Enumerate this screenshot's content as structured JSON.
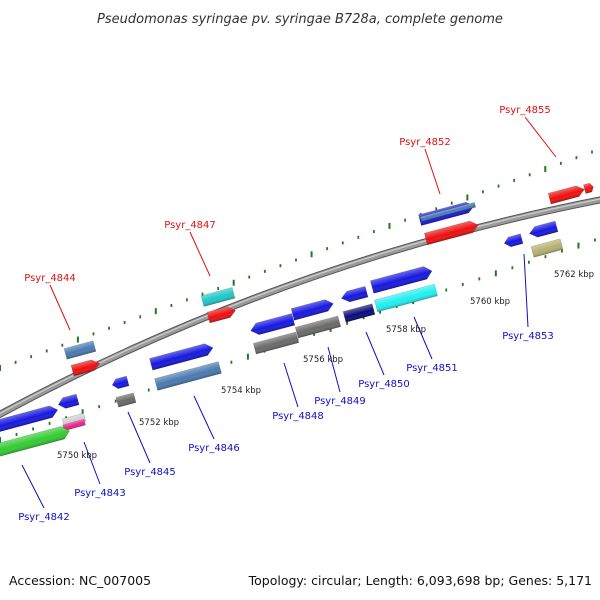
{
  "title": "Pseudomonas syringae pv. syringae B728a, complete genome",
  "footer": {
    "accession": "Accession: NC_007005",
    "summary": "Topology: circular; Length: 6,093,698 bp; Genes: 5,171"
  },
  "ticks": [
    "5750 kbp",
    "5752 kbp",
    "5754 kbp",
    "5756 kbp",
    "5758 kbp",
    "5760 kbp",
    "5762 kbp"
  ],
  "genes_top": [
    "Psyr_4844",
    "Psyr_4847",
    "Psyr_4852",
    "Psyr_4855"
  ],
  "genes_bottom": [
    "Psyr_4842",
    "Psyr_4843",
    "Psyr_4845",
    "Psyr_4846",
    "Psyr_4848",
    "Psyr_4849",
    "Psyr_4850",
    "Psyr_4851",
    "Psyr_4853"
  ],
  "colors": {
    "backbone": "#8a8a8a",
    "tick_green": "#1e7a1e",
    "label_red": "#e01010",
    "label_blue": "#1010c0",
    "cds_blue": "#1818e0",
    "cds_red": "#ee1010",
    "cds_teal": "#20c8c8",
    "cds_steel": "#4a7ab0",
    "cds_gray": "#6a6a6a",
    "cds_green": "#33cc33",
    "cds_navy": "#0c0c7a",
    "cds_cyan": "#20f0f0",
    "cds_khaki": "#b8b070",
    "cds_pink": "#ee2090"
  }
}
